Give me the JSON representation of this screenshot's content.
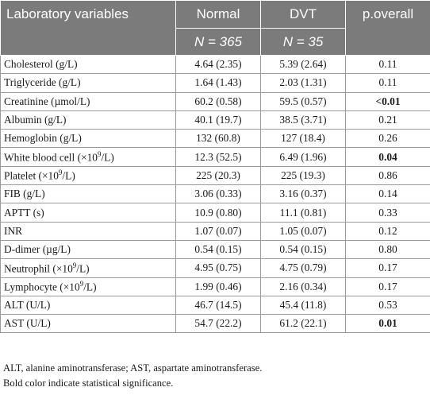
{
  "table": {
    "headers": {
      "variable": "Laboratory variables",
      "normal": "Normal",
      "dvt": "DVT",
      "p": "p.overall",
      "normal_n": "N = 365",
      "dvt_n": "N = 35"
    },
    "rows": [
      {
        "label": "Cholesterol (g/L)",
        "normal": "4.64 (2.35)",
        "dvt": "5.39 (2.64)",
        "p": "0.11",
        "p_bold": false
      },
      {
        "label": "Triglyceride (g/L)",
        "normal": "1.64 (1.43)",
        "dvt": "2.03 (1.31)",
        "p": "0.11",
        "p_bold": false
      },
      {
        "label": "Creatinine (µmol/L)",
        "normal": "60.2 (0.58)",
        "dvt": "59.5 (0.57)",
        "p": "<0.01",
        "p_bold": true
      },
      {
        "label": "Albumin (g/L)",
        "normal": "40.1 (19.7)",
        "dvt": "38.5 (3.71)",
        "p": "0.21",
        "p_bold": false
      },
      {
        "label": "Hemoglobin (g/L)",
        "normal": "132 (60.8)",
        "dvt": "127 (18.4)",
        "p": "0.26",
        "p_bold": false
      },
      {
        "label_pre": "White blood cell (×10",
        "label_sup": "9",
        "label_post": "/L)",
        "normal": "12.3 (52.5)",
        "dvt": "6.49 (1.96)",
        "p": "0.04",
        "p_bold": true
      },
      {
        "label_pre": "Platelet (×10",
        "label_sup": "9",
        "label_post": "/L)",
        "normal": "225 (20.3)",
        "dvt": "225 (19.3)",
        "p": "0.86",
        "p_bold": false
      },
      {
        "label": "FIB (g/L)",
        "normal": "3.06 (0.33)",
        "dvt": "3.16 (0.37)",
        "p": "0.14",
        "p_bold": false
      },
      {
        "label": "APTT (s)",
        "normal": "10.9 (0.80)",
        "dvt": "11.1 (0.81)",
        "p": "0.33",
        "p_bold": false
      },
      {
        "label": "INR",
        "normal": "1.07 (0.07)",
        "dvt": "1.05 (0.07)",
        "p": "0.12",
        "p_bold": false
      },
      {
        "label": "D-dimer (µg/L)",
        "normal": "0.54 (0.15)",
        "dvt": "0.54 (0.15)",
        "p": "0.80",
        "p_bold": false
      },
      {
        "label_pre": "Neutrophil (×10",
        "label_sup": "9",
        "label_post": "/L)",
        "normal": "4.95 (0.75)",
        "dvt": "4.75 (0.79)",
        "p": "0.17",
        "p_bold": false
      },
      {
        "label_pre": "Lymphocyte (×10",
        "label_sup": "9",
        "label_post": "/L)",
        "normal": "1.99 (0.46)",
        "dvt": "2.16 (0.34)",
        "p": "0.17",
        "p_bold": false
      },
      {
        "label": "ALT (U/L)",
        "normal": "46.7 (14.5)",
        "dvt": "45.4 (11.8)",
        "p": "0.53",
        "p_bold": false
      },
      {
        "label": "AST (U/L)",
        "normal": "54.7 (22.2)",
        "dvt": "61.2 (22.1)",
        "p": "0.01",
        "p_bold": true
      }
    ]
  },
  "footnotes": {
    "abbreviations": "ALT, alanine aminotransferase; AST, aspartate aminotransferase.",
    "significance": "Bold color indicate statistical significance."
  },
  "colors": {
    "header_bg": "#7b7b7b",
    "header_text": "#ffffff",
    "grid": "#9a9a9a"
  }
}
